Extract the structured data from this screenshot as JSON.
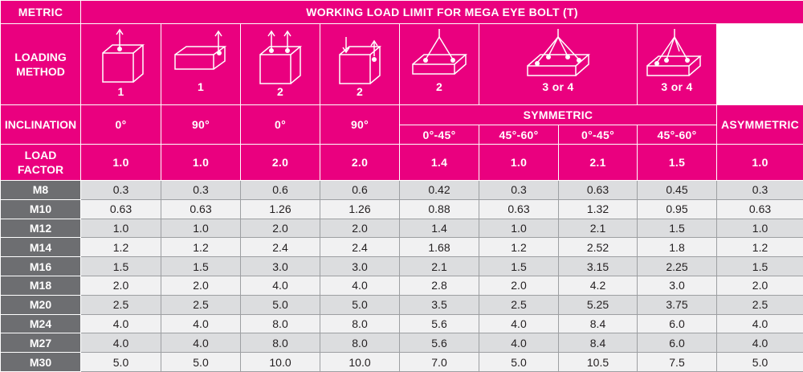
{
  "header": {
    "metric": "METRIC",
    "title": "WORKING LOAD LIMIT FOR MEGA EYE BOLT  (T)"
  },
  "loading_method": {
    "label_line1": "LOADING",
    "label_line2": "METHOD",
    "diagrams": [
      {
        "icon": "block-single-vertical-bolt-icon",
        "count": "1"
      },
      {
        "icon": "block-single-side-bolt-icon",
        "count": "1"
      },
      {
        "icon": "block-two-vertical-bolts-icon",
        "count": "2"
      },
      {
        "icon": "block-two-side-bolts-icon",
        "count": "2"
      },
      {
        "icon": "plate-two-leg-sling-icon",
        "count": "2"
      },
      {
        "icon": "plate-three-four-leg-sling-icon",
        "count": "3 or 4"
      },
      {
        "icon": "plate-asymmetric-sling-icon",
        "count": "3 or 4"
      }
    ]
  },
  "inclination": {
    "label": "INCLINATION",
    "values": [
      "0°",
      "90°",
      "0°",
      "90°"
    ],
    "symmetric": "SYMMETRIC",
    "sym_angles": [
      "0°-45°",
      "45°-60°",
      "0°-45°",
      "45°-60°"
    ],
    "asymmetric": "ASYMMETRIC"
  },
  "load_factor": {
    "label_line1": "LOAD",
    "label_line2": "FACTOR",
    "values": [
      "1.0",
      "1.0",
      "2.0",
      "2.0",
      "1.4",
      "1.0",
      "2.1",
      "1.5",
      "1.0"
    ]
  },
  "rows": [
    {
      "metric": "M8",
      "values": [
        "0.3",
        "0.3",
        "0.6",
        "0.6",
        "0.42",
        "0.3",
        "0.63",
        "0.45",
        "0.3"
      ]
    },
    {
      "metric": "M10",
      "values": [
        "0.63",
        "0.63",
        "1.26",
        "1.26",
        "0.88",
        "0.63",
        "1.32",
        "0.95",
        "0.63"
      ]
    },
    {
      "metric": "M12",
      "values": [
        "1.0",
        "1.0",
        "2.0",
        "2.0",
        "1.4",
        "1.0",
        "2.1",
        "1.5",
        "1.0"
      ]
    },
    {
      "metric": "M14",
      "values": [
        "1.2",
        "1.2",
        "2.4",
        "2.4",
        "1.68",
        "1.2",
        "2.52",
        "1.8",
        "1.2"
      ]
    },
    {
      "metric": "M16",
      "values": [
        "1.5",
        "1.5",
        "3.0",
        "3.0",
        "2.1",
        "1.5",
        "3.15",
        "2.25",
        "1.5"
      ]
    },
    {
      "metric": "M18",
      "values": [
        "2.0",
        "2.0",
        "4.0",
        "4.0",
        "2.8",
        "2.0",
        "4.2",
        "3.0",
        "2.0"
      ]
    },
    {
      "metric": "M20",
      "values": [
        "2.5",
        "2.5",
        "5.0",
        "5.0",
        "3.5",
        "2.5",
        "5.25",
        "3.75",
        "2.5"
      ]
    },
    {
      "metric": "M24",
      "values": [
        "4.0",
        "4.0",
        "8.0",
        "8.0",
        "5.6",
        "4.0",
        "8.4",
        "6.0",
        "4.0"
      ]
    },
    {
      "metric": "M27",
      "values": [
        "4.0",
        "4.0",
        "8.0",
        "8.0",
        "5.6",
        "4.0",
        "8.4",
        "6.0",
        "4.0"
      ]
    },
    {
      "metric": "M30",
      "values": [
        "5.0",
        "5.0",
        "10.0",
        "10.0",
        "7.0",
        "5.0",
        "10.5",
        "7.5",
        "5.0"
      ]
    }
  ],
  "colors": {
    "accent": "#ea007f",
    "metric_bg": "#6d6e71",
    "row_dark": "#dcdddf",
    "row_light": "#f1f1f2"
  }
}
